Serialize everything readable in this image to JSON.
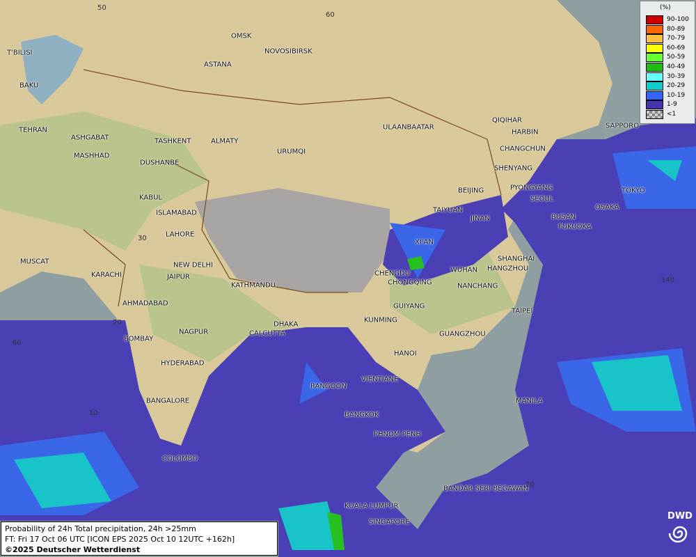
{
  "map": {
    "colors": {
      "sea": "#8f9ea0",
      "land_north": "#d8c89a",
      "land_green": "#b9c48c",
      "plateau": "#a8a4a4",
      "prob_1_9": "#4a3fb4",
      "prob_10_19": "#3a66e8",
      "prob_20_29": "#18c4c8",
      "prob_30_39": "#60f8f8",
      "prob_40_49": "#28c020"
    },
    "cities": [
      "OMSK",
      "NOVOSIBIRSK",
      "ASTANA",
      "T'BILISI",
      "BAKU",
      "TEHRAN",
      "ASHGABAT",
      "MASHHAD",
      "TASHKENT",
      "ALMATY",
      "DUSHANBE",
      "URUMQI",
      "ULAANBAATAR",
      "QIQIHAR",
      "HARBIN",
      "CHANGCHUN",
      "SHENYANG",
      "SAPPORO",
      "BEIJING",
      "PYONGYANG",
      "SEOUL",
      "TOKYO",
      "OSAKA",
      "BUSAN",
      "FUKUOKA",
      "TAIYUAN",
      "JINAN",
      "KABUL",
      "ISLAMABAD",
      "LAHORE",
      "XI'AN",
      "SHANGHAI",
      "HANGZHOU",
      "CHENGDU",
      "WUHAN",
      "CHONGQING",
      "NANCHANG",
      "NEW DELHI",
      "JAIPUR",
      "MUSCAT",
      "KARACHI",
      "KATHMANDU",
      "AHMADABAD",
      "GUIYANG",
      "TAIPEI",
      "KUNMING",
      "DHAKA",
      "NAGPUR",
      "CALCUTTA",
      "GUANGZHOU",
      "BOMBAY",
      "HANOI",
      "HYDERABAD",
      "RANGOON",
      "VIENTIANE",
      "MANILA",
      "BANGALORE",
      "BANGKOK",
      "PHNOM PENH",
      "COLOMBO",
      "BANDAR SERI BEGAWAN",
      "KUALA LUMPUR",
      "SINGAPORE"
    ],
    "grid_labels": [
      "50",
      "60",
      "30",
      "20",
      "60",
      "10",
      "140",
      "20"
    ]
  },
  "legend": {
    "unit": "(%)",
    "items": [
      {
        "label": "90-100",
        "color": "#cc0000"
      },
      {
        "label": "80-89",
        "color": "#ff6600"
      },
      {
        "label": "70-79",
        "color": "#ffc040"
      },
      {
        "label": "60-69",
        "color": "#ffff00"
      },
      {
        "label": "50-59",
        "color": "#66ff33"
      },
      {
        "label": "40-49",
        "color": "#22bb11"
      },
      {
        "label": "30-39",
        "color": "#66ffff"
      },
      {
        "label": "20-29",
        "color": "#11cccc"
      },
      {
        "label": "10-19",
        "color": "#3366ff"
      },
      {
        "label": "1-9",
        "color": "#4433aa"
      },
      {
        "label": "<1",
        "color": "checker"
      }
    ]
  },
  "info": {
    "line1": "Probability of 24h Total precipitation, 24h >25mm",
    "line2": "FT: Fri 17 Oct 06 UTC [ICON EPS 2025 Oct 10 12UTC +162h]",
    "line3": "©2025 Deutscher Wetterdienst"
  },
  "logo": "DWD"
}
